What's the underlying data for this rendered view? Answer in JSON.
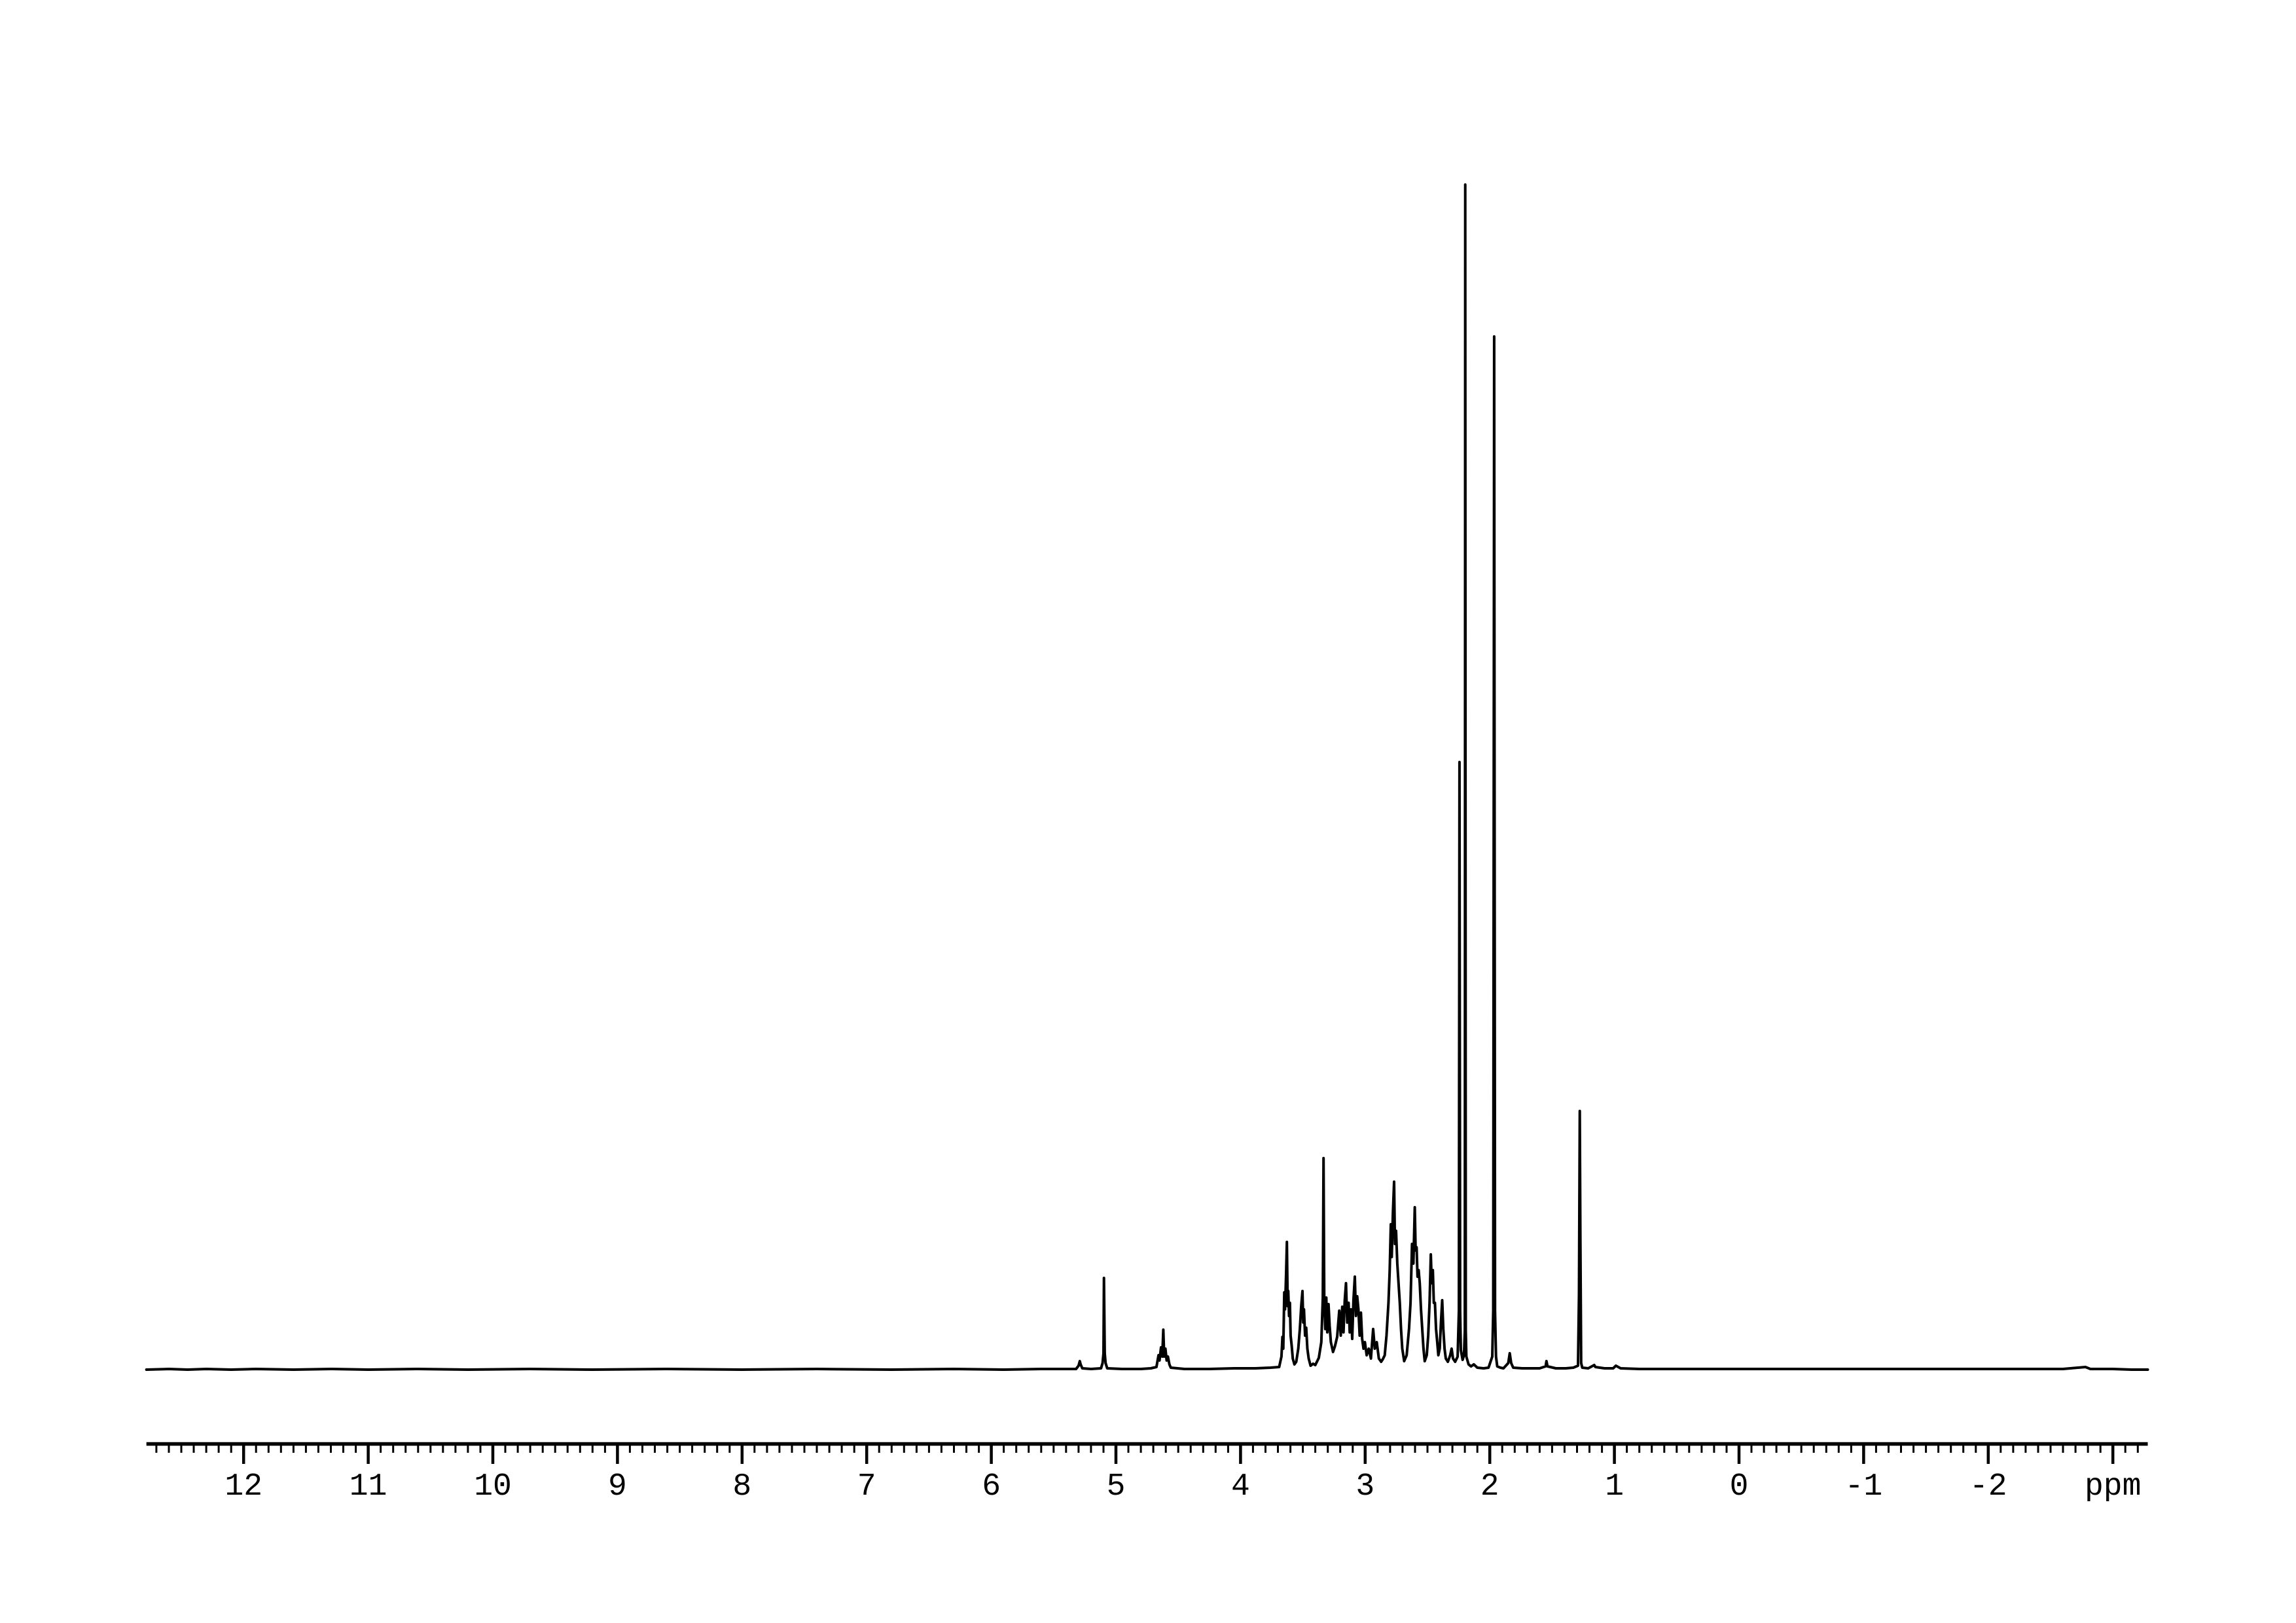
{
  "figure": {
    "background_color": "#ffffff",
    "line_color": "#000000",
    "description": "1H NMR spectrum, black trace on white background with ppm axis below"
  },
  "axis": {
    "unit_label": "ppm",
    "labels": [
      {
        "value": 12,
        "text": "12"
      },
      {
        "value": 11,
        "text": "11"
      },
      {
        "value": 10,
        "text": "10"
      },
      {
        "value": 9,
        "text": "9"
      },
      {
        "value": 8,
        "text": "8"
      },
      {
        "value": 7,
        "text": "7"
      },
      {
        "value": 6,
        "text": "6"
      },
      {
        "value": 5,
        "text": "5"
      },
      {
        "value": 4,
        "text": "4"
      },
      {
        "value": 3,
        "text": "3"
      },
      {
        "value": 2,
        "text": "2"
      },
      {
        "value": 1,
        "text": "1"
      },
      {
        "value": 0,
        "text": "0"
      },
      {
        "value": -1,
        "text": "-1"
      },
      {
        "value": -2,
        "text": "-2"
      },
      {
        "value": -3,
        "text": "ppm"
      }
    ],
    "major_tick_values": [
      12,
      11,
      10,
      9,
      8,
      7,
      6,
      5,
      4,
      3,
      2,
      1,
      0,
      -1,
      -2,
      -3
    ],
    "minor_tick_step": 0.1,
    "minor_tick_range": [
      12.7,
      -3.2
    ],
    "axis_extent_ppm": [
      12.78,
      -3.28
    ]
  },
  "chart_data": {
    "type": "line",
    "xlabel": "ppm",
    "x_axis": {
      "min": -3.3,
      "max": 12.78,
      "direction": "reversed",
      "grid": false
    },
    "y_axis": {
      "shown": false,
      "intensity_units": "pixel height above baseline, tallest peak = 1810"
    },
    "legend": "none",
    "peaks": [
      {
        "ppm": 5.29,
        "rel_height": 13,
        "note": "trace singlet"
      },
      {
        "ppm": 5.1,
        "rel_height": 140,
        "note": "sharp singlet"
      },
      {
        "ppm": 4.62,
        "rel_height": 61,
        "note": "small multiplet hump"
      },
      {
        "ppm": 3.63,
        "rel_height": 195,
        "note": "multiplet"
      },
      {
        "ppm": 3.5,
        "rel_height": 120,
        "note": "multiplet"
      },
      {
        "ppm": 3.33,
        "rel_height": 323,
        "note": "sharp peak"
      },
      {
        "ppm": 3.08,
        "rel_height": 142,
        "note": "dense multiplet band 3.25-3.00"
      },
      {
        "ppm": 2.77,
        "rel_height": 287,
        "note": "multiplet"
      },
      {
        "ppm": 2.6,
        "rel_height": 248,
        "note": "multiplet"
      },
      {
        "ppm": 2.47,
        "rel_height": 176,
        "note": "multiplet"
      },
      {
        "ppm": 2.38,
        "rel_height": 106,
        "note": "small multiplet"
      },
      {
        "ppm": 2.24,
        "rel_height": 928,
        "note": "tall singlet"
      },
      {
        "ppm": 2.2,
        "rel_height": 1810,
        "note": "tallest singlet"
      },
      {
        "ppm": 1.96,
        "rel_height": 1578,
        "note": "tall singlet"
      },
      {
        "ppm": 1.84,
        "rel_height": 25,
        "note": "small bump"
      },
      {
        "ppm": 1.28,
        "rel_height": 395,
        "note": "sharp singlet"
      },
      {
        "ppm": 0.99,
        "rel_height": 6,
        "note": "trace bump"
      }
    ],
    "trace_points": [
      [
        12.78,
        0
      ],
      [
        12.6,
        1
      ],
      [
        12.45,
        0
      ],
      [
        12.3,
        1
      ],
      [
        12.1,
        0
      ],
      [
        11.9,
        1
      ],
      [
        11.6,
        0
      ],
      [
        11.3,
        1
      ],
      [
        11.0,
        0
      ],
      [
        10.6,
        1
      ],
      [
        10.2,
        0
      ],
      [
        9.7,
        1
      ],
      [
        9.2,
        0
      ],
      [
        8.6,
        1
      ],
      [
        8.0,
        0
      ],
      [
        7.4,
        1
      ],
      [
        6.8,
        0
      ],
      [
        6.3,
        1
      ],
      [
        5.9,
        0
      ],
      [
        5.6,
        1
      ],
      [
        5.32,
        1
      ],
      [
        5.3,
        6
      ],
      [
        5.29,
        13
      ],
      [
        5.283,
        8
      ],
      [
        5.27,
        2
      ],
      [
        5.2,
        1
      ],
      [
        5.12,
        2
      ],
      [
        5.107,
        10
      ],
      [
        5.1,
        25
      ],
      [
        5.096,
        140
      ],
      [
        5.09,
        25
      ],
      [
        5.083,
        10
      ],
      [
        5.07,
        2
      ],
      [
        4.95,
        1
      ],
      [
        4.8,
        1
      ],
      [
        4.72,
        2
      ],
      [
        4.675,
        4
      ],
      [
        4.658,
        22
      ],
      [
        4.65,
        14
      ],
      [
        4.638,
        34
      ],
      [
        4.628,
        20
      ],
      [
        4.62,
        61
      ],
      [
        4.613,
        20
      ],
      [
        4.603,
        32
      ],
      [
        4.593,
        14
      ],
      [
        4.583,
        20
      ],
      [
        4.571,
        8
      ],
      [
        4.56,
        3
      ],
      [
        4.45,
        1
      ],
      [
        4.25,
        1
      ],
      [
        4.05,
        2
      ],
      [
        3.88,
        2
      ],
      [
        3.76,
        3
      ],
      [
        3.69,
        4
      ],
      [
        3.672,
        20
      ],
      [
        3.664,
        50
      ],
      [
        3.657,
        32
      ],
      [
        3.649,
        118
      ],
      [
        3.643,
        92
      ],
      [
        3.634,
        150
      ],
      [
        3.628,
        195
      ],
      [
        3.622,
        97
      ],
      [
        3.617,
        120
      ],
      [
        3.611,
        82
      ],
      [
        3.604,
        102
      ],
      [
        3.598,
        52
      ],
      [
        3.59,
        37
      ],
      [
        3.581,
        17
      ],
      [
        3.568,
        8
      ],
      [
        3.553,
        12
      ],
      [
        3.537,
        32
      ],
      [
        3.524,
        62
      ],
      [
        3.513,
        97
      ],
      [
        3.503,
        120
      ],
      [
        3.497,
        72
      ],
      [
        3.491,
        92
      ],
      [
        3.482,
        52
      ],
      [
        3.473,
        64
      ],
      [
        3.464,
        32
      ],
      [
        3.453,
        17
      ],
      [
        3.438,
        6
      ],
      [
        3.418,
        9
      ],
      [
        3.4,
        7
      ],
      [
        3.372,
        18
      ],
      [
        3.352,
        42
      ],
      [
        3.34,
        110
      ],
      [
        3.334,
        323
      ],
      [
        3.328,
        105
      ],
      [
        3.32,
        62
      ],
      [
        3.312,
        110
      ],
      [
        3.304,
        57
      ],
      [
        3.294,
        100
      ],
      [
        3.285,
        67
      ],
      [
        3.275,
        42
      ],
      [
        3.258,
        27
      ],
      [
        3.242,
        36
      ],
      [
        3.225,
        50
      ],
      [
        3.208,
        90
      ],
      [
        3.196,
        52
      ],
      [
        3.184,
        96
      ],
      [
        3.174,
        57
      ],
      [
        3.164,
        106
      ],
      [
        3.154,
        132
      ],
      [
        3.144,
        72
      ],
      [
        3.133,
        102
      ],
      [
        3.124,
        57
      ],
      [
        3.114,
        92
      ],
      [
        3.104,
        47
      ],
      [
        3.094,
        106
      ],
      [
        3.083,
        142
      ],
      [
        3.074,
        82
      ],
      [
        3.064,
        112
      ],
      [
        3.054,
        92
      ],
      [
        3.044,
        52
      ],
      [
        3.034,
        87
      ],
      [
        3.024,
        47
      ],
      [
        3.013,
        32
      ],
      [
        3.002,
        42
      ],
      [
        2.988,
        22
      ],
      [
        2.971,
        32
      ],
      [
        2.954,
        17
      ],
      [
        2.936,
        62
      ],
      [
        2.923,
        32
      ],
      [
        2.907,
        42
      ],
      [
        2.89,
        17
      ],
      [
        2.872,
        12
      ],
      [
        2.858,
        16
      ],
      [
        2.843,
        22
      ],
      [
        2.829,
        52
      ],
      [
        2.813,
        102
      ],
      [
        2.803,
        152
      ],
      [
        2.794,
        222
      ],
      [
        2.787,
        172
      ],
      [
        2.778,
        237
      ],
      [
        2.768,
        287
      ],
      [
        2.761,
        192
      ],
      [
        2.752,
        212
      ],
      [
        2.742,
        162
      ],
      [
        2.732,
        132
      ],
      [
        2.722,
        102
      ],
      [
        2.712,
        62
      ],
      [
        2.702,
        32
      ],
      [
        2.687,
        13
      ],
      [
        2.667,
        22
      ],
      [
        2.648,
        62
      ],
      [
        2.636,
        102
      ],
      [
        2.624,
        192
      ],
      [
        2.613,
        162
      ],
      [
        2.602,
        248
      ],
      [
        2.595,
        182
      ],
      [
        2.587,
        187
      ],
      [
        2.58,
        142
      ],
      [
        2.571,
        152
      ],
      [
        2.562,
        132
      ],
      [
        2.552,
        92
      ],
      [
        2.542,
        62
      ],
      [
        2.532,
        32
      ],
      [
        2.522,
        13
      ],
      [
        2.506,
        22
      ],
      [
        2.494,
        52
      ],
      [
        2.483,
        102
      ],
      [
        2.473,
        176
      ],
      [
        2.466,
        132
      ],
      [
        2.457,
        152
      ],
      [
        2.449,
        102
      ],
      [
        2.44,
        102
      ],
      [
        2.431,
        62
      ],
      [
        2.422,
        42
      ],
      [
        2.413,
        22
      ],
      [
        2.402,
        32
      ],
      [
        2.392,
        72
      ],
      [
        2.382,
        106
      ],
      [
        2.373,
        62
      ],
      [
        2.363,
        32
      ],
      [
        2.353,
        17
      ],
      [
        2.336,
        12
      ],
      [
        2.318,
        22
      ],
      [
        2.306,
        32
      ],
      [
        2.295,
        17
      ],
      [
        2.278,
        12
      ],
      [
        2.258,
        20
      ],
      [
        2.248,
        90
      ],
      [
        2.243,
        928
      ],
      [
        2.238,
        90
      ],
      [
        2.232,
        30
      ],
      [
        2.218,
        15
      ],
      [
        2.207,
        22
      ],
      [
        2.2,
        60
      ],
      [
        2.197,
        1810
      ],
      [
        2.193,
        60
      ],
      [
        2.188,
        20
      ],
      [
        2.17,
        8
      ],
      [
        2.15,
        5
      ],
      [
        2.128,
        8
      ],
      [
        2.1,
        3
      ],
      [
        2.05,
        2
      ],
      [
        2.01,
        3
      ],
      [
        1.98,
        20
      ],
      [
        1.972,
        90
      ],
      [
        1.965,
        1578
      ],
      [
        1.958,
        90
      ],
      [
        1.95,
        20
      ],
      [
        1.94,
        5
      ],
      [
        1.915,
        3
      ],
      [
        1.89,
        2
      ],
      [
        1.852,
        10
      ],
      [
        1.84,
        25
      ],
      [
        1.828,
        10
      ],
      [
        1.812,
        3
      ],
      [
        1.74,
        2
      ],
      [
        1.66,
        2
      ],
      [
        1.6,
        2
      ],
      [
        1.552,
        5
      ],
      [
        1.545,
        13
      ],
      [
        1.537,
        5
      ],
      [
        1.47,
        2
      ],
      [
        1.39,
        2
      ],
      [
        1.33,
        3
      ],
      [
        1.292,
        6
      ],
      [
        1.284,
        115
      ],
      [
        1.278,
        395
      ],
      [
        1.273,
        205
      ],
      [
        1.267,
        10
      ],
      [
        1.258,
        3
      ],
      [
        1.21,
        2
      ],
      [
        1.162,
        7
      ],
      [
        1.153,
        4
      ],
      [
        1.08,
        2
      ],
      [
        1.01,
        2
      ],
      [
        0.988,
        6
      ],
      [
        0.95,
        2
      ],
      [
        0.8,
        1
      ],
      [
        0.6,
        1
      ],
      [
        0.4,
        1
      ],
      [
        0.2,
        1
      ],
      [
        0.0,
        1
      ],
      [
        -0.3,
        1
      ],
      [
        -0.6,
        1
      ],
      [
        -0.9,
        1
      ],
      [
        -1.2,
        1
      ],
      [
        -1.5,
        1
      ],
      [
        -1.8,
        1
      ],
      [
        -2.1,
        1
      ],
      [
        -2.4,
        1
      ],
      [
        -2.6,
        1
      ],
      [
        -2.78,
        4
      ],
      [
        -2.82,
        1
      ],
      [
        -3.0,
        1
      ],
      [
        -3.15,
        0
      ],
      [
        -3.28,
        0
      ]
    ]
  }
}
